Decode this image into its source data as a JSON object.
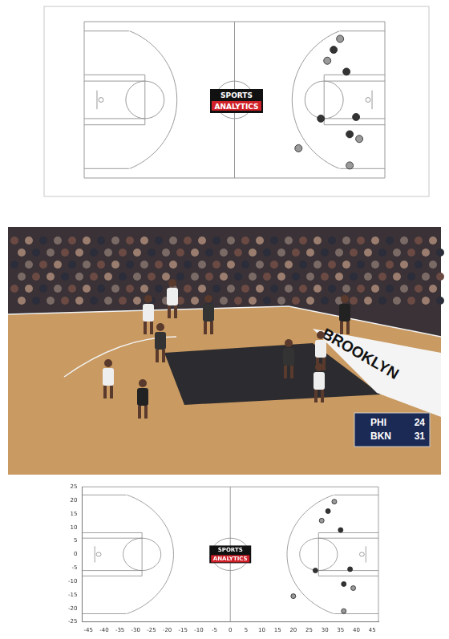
{
  "court_diagram": {
    "logo": [
      "SPORTS",
      "ANALYTICS"
    ]
  },
  "broadcast": {
    "floor_text": "BROOKLYN",
    "scoreboard": [
      {
        "team": "PHI",
        "score": 24
      },
      {
        "team": "BKN",
        "score": 31
      }
    ]
  },
  "chart_data": {
    "type": "scatter",
    "x": [
      33,
      31,
      29,
      35,
      27,
      38,
      20,
      36,
      39,
      36
    ],
    "values": [
      19.5,
      16,
      12.5,
      9,
      -6,
      -5.5,
      -15.5,
      -11,
      -12.5,
      -21
    ],
    "colors": [
      "#9a9a9a",
      "#333333",
      "#9a9a9a",
      "#333333",
      "#333333",
      "#333333",
      "#9a9a9a",
      "#333333",
      "#9a9a9a",
      "#9a9a9a"
    ],
    "marker": "circle",
    "xlim": [
      -47,
      47
    ],
    "ylim": [
      -25,
      25
    ],
    "xticks": [
      -45,
      -40,
      -35,
      -30,
      -25,
      -20,
      -15,
      -10,
      -5,
      0,
      5,
      10,
      15,
      20,
      25,
      30,
      35,
      40,
      45
    ],
    "yticks": [
      -25,
      -20,
      -15,
      -10,
      -5,
      0,
      5,
      10,
      15,
      20,
      25
    ],
    "grid": false
  }
}
